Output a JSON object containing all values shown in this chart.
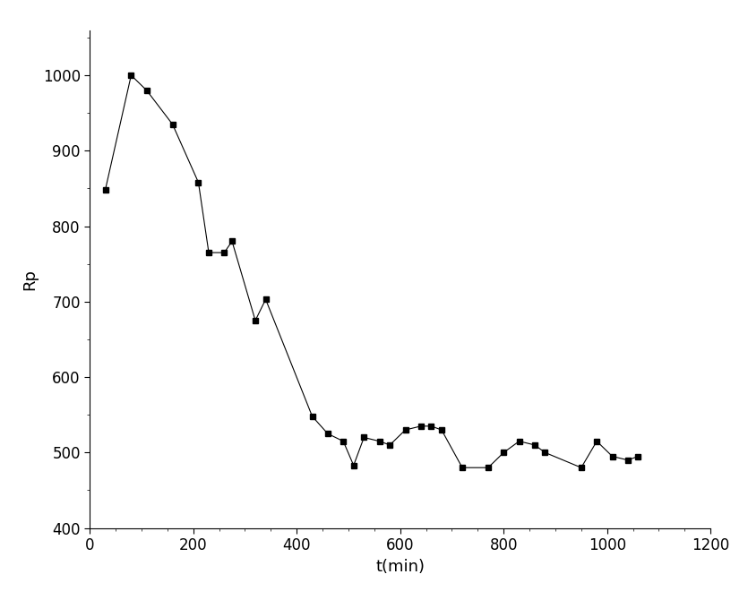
{
  "x": [
    30,
    80,
    110,
    160,
    210,
    230,
    260,
    275,
    320,
    340,
    430,
    460,
    490,
    510,
    530,
    560,
    580,
    610,
    640,
    660,
    680,
    720,
    770,
    800,
    830,
    860,
    880,
    950,
    980,
    1010,
    1040,
    1060
  ],
  "y": [
    848,
    1000,
    980,
    935,
    858,
    765,
    765,
    780,
    675,
    703,
    548,
    525,
    515,
    483,
    520,
    515,
    510,
    530,
    535,
    535,
    530,
    480,
    480,
    500,
    515,
    510,
    500,
    480,
    515,
    495,
    490,
    495
  ],
  "xlabel": "t(min)",
  "ylabel": "Rp",
  "xlim": [
    0,
    1200
  ],
  "ylim": [
    400,
    1060
  ],
  "xticks": [
    0,
    200,
    400,
    600,
    800,
    1000,
    1200
  ],
  "yticks": [
    400,
    500,
    600,
    700,
    800,
    900,
    1000
  ],
  "marker": "s",
  "marker_size": 5,
  "line_color": "#000000",
  "marker_color": "#000000",
  "background_color": "#ffffff",
  "line_width": 0.8,
  "xlabel_fontsize": 13,
  "ylabel_fontsize": 13,
  "tick_fontsize": 12
}
